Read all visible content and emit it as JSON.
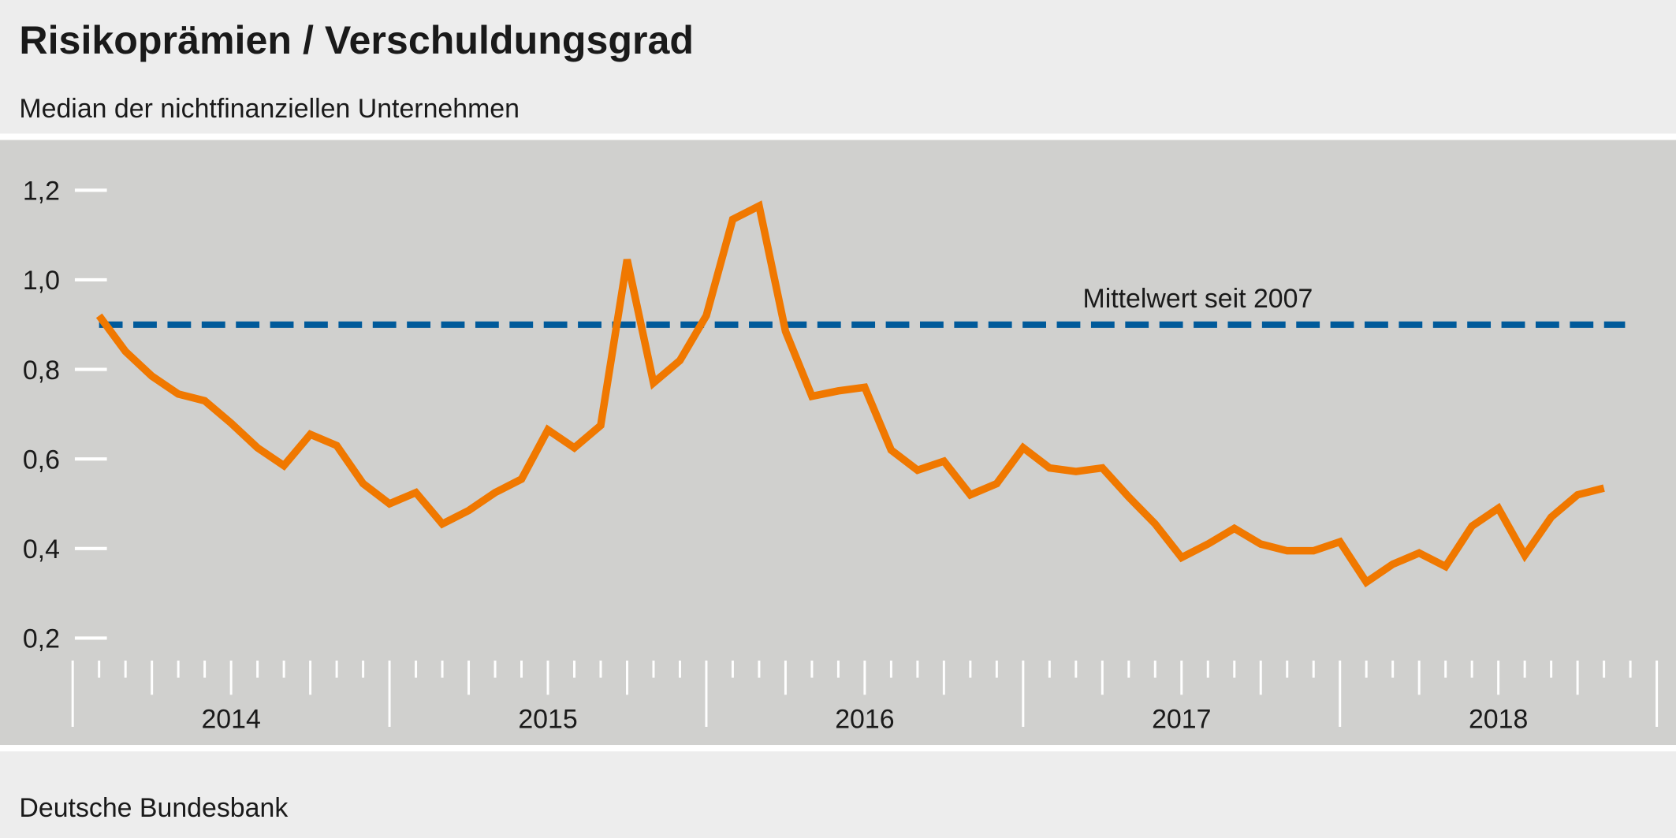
{
  "title": "Risikoprämien / Verschuldungsgrad",
  "subtitle": "Median der nichtfinanziellen Unternehmen",
  "source": "Deutsche Bundesbank",
  "colors": {
    "background": "#ededed",
    "plot_area": "#d0d0ce",
    "series": "#f07800",
    "reference": "#005a9a"
  },
  "chart_data": {
    "type": "line",
    "title": "Risikoprämien / Verschuldungsgrad",
    "subtitle": "Median der nichtfinanziellen Unternehmen",
    "xlabel": "",
    "ylabel": "",
    "ylim": [
      0.2,
      1.2
    ],
    "yticks": [
      "1,2",
      "1,0",
      "0,8",
      "0,6",
      "0,4",
      "0,2"
    ],
    "ytick_values": [
      1.2,
      1.0,
      0.8,
      0.6,
      0.4,
      0.2
    ],
    "xlim": [
      "2014-01",
      "2019-01"
    ],
    "xtick_labels": [
      "2014",
      "2015",
      "2016",
      "2017",
      "2018"
    ],
    "grid": false,
    "x_start": "2014-02",
    "x_step": "month",
    "series": [
      {
        "values": [
          0.92,
          0.84,
          0.785,
          0.745,
          0.73,
          0.68,
          0.625,
          0.585,
          0.655,
          0.63,
          0.545,
          0.5,
          0.525,
          0.455,
          0.485,
          0.525,
          0.555,
          0.665,
          0.625,
          0.675,
          1.045,
          0.77,
          0.82,
          0.92,
          1.135,
          1.165,
          0.885,
          0.74,
          0.752,
          0.76,
          0.62,
          0.575,
          0.595,
          0.52,
          0.545,
          0.625,
          0.58,
          0.572,
          0.58,
          0.515,
          0.455,
          0.38,
          0.41,
          0.445,
          0.41,
          0.395,
          0.395,
          0.415,
          0.325,
          0.365,
          0.39,
          0.36,
          0.45,
          0.49,
          0.385,
          0.47,
          0.52,
          0.535
        ]
      }
    ],
    "reference_line": {
      "label": "Mittelwert seit 2007",
      "value": 0.9,
      "style": "dashed"
    }
  }
}
